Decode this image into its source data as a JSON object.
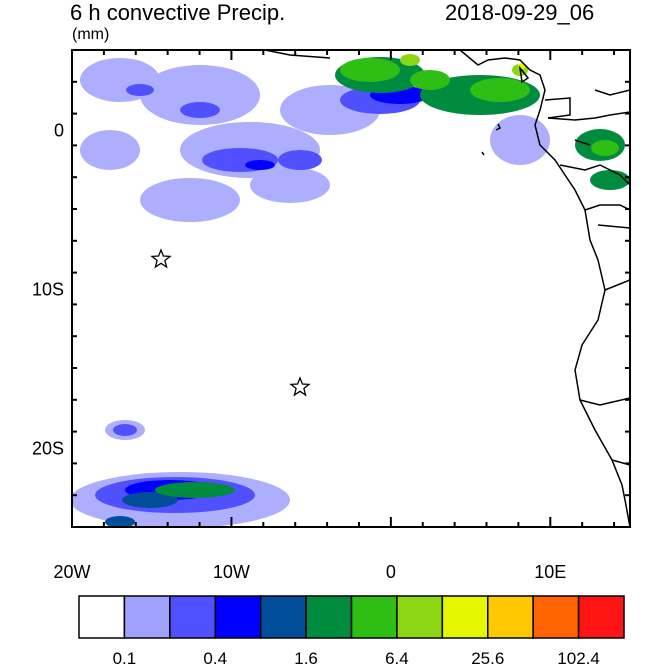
{
  "header": {
    "title": "6 h convective Precip.",
    "units": "(mm)",
    "valid_time": "2018-09-29_06"
  },
  "axes": {
    "x_ticks": [
      {
        "lon": -20,
        "label": "20W"
      },
      {
        "lon": -10,
        "label": "10W"
      },
      {
        "lon": 0,
        "label": "0"
      },
      {
        "lon": 10,
        "label": "10E"
      }
    ],
    "y_ticks": [
      {
        "lat": 0,
        "label": "0"
      },
      {
        "lat": -10,
        "label": "10S"
      },
      {
        "lat": -20,
        "label": "20S"
      }
    ],
    "lon_range": [
      -20,
      15
    ],
    "lat_range": [
      -25,
      5
    ]
  },
  "markers": [
    {
      "name": "star-marker-ascension",
      "lon": -14.4,
      "lat": -7.9
    },
    {
      "name": "star-marker-st-helena",
      "lon": -5.7,
      "lat": -15.9
    }
  ],
  "colorbar": {
    "colors": [
      "#ffffff",
      "#a0a0ff",
      "#5050ff",
      "#0000ff",
      "#004e9a",
      "#008c3e",
      "#2ebe14",
      "#8cd614",
      "#e6f500",
      "#ffc800",
      "#ff6400",
      "#ff1414"
    ],
    "labels": [
      "0.1",
      "0.4",
      "1.6",
      "6.4",
      "25.6",
      "102.4"
    ]
  }
}
